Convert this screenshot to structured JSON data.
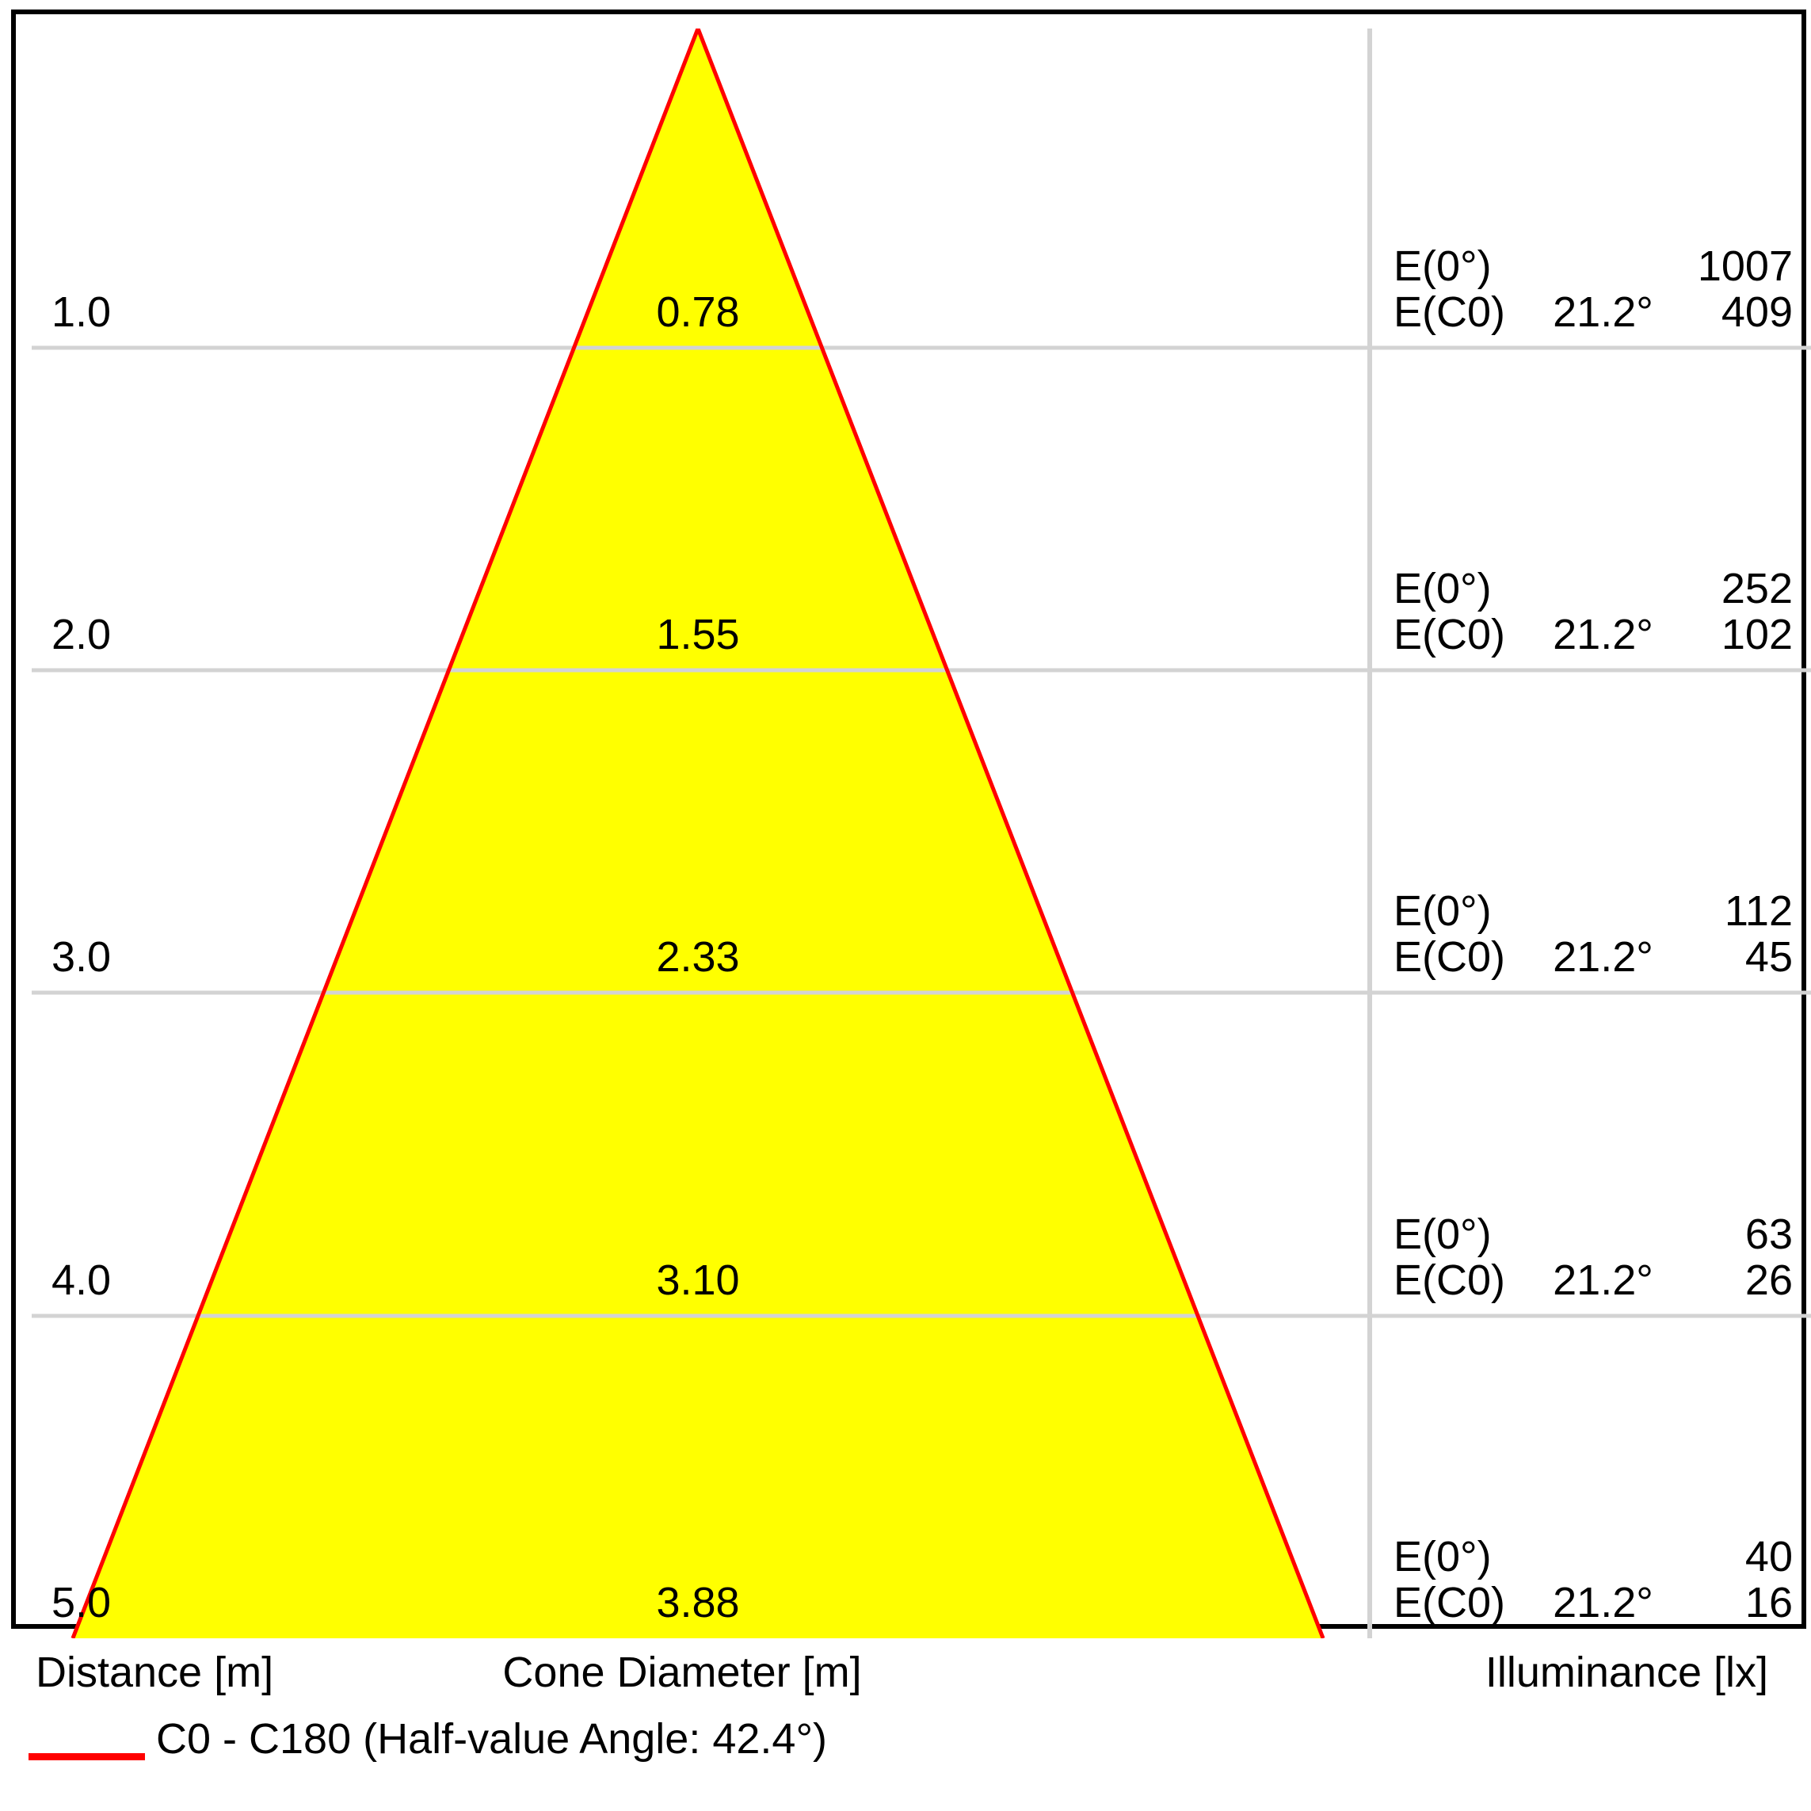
{
  "chart_data": {
    "type": "table",
    "description_rows": [
      {
        "distance_m": "1.0",
        "cone_diameter_m": "0.78",
        "e0_label": "E(0°)",
        "e0_lx": "1007",
        "ec0_label": "E(C0)",
        "ec0_angle": "21.2°",
        "ec0_lx": "409"
      },
      {
        "distance_m": "2.0",
        "cone_diameter_m": "1.55",
        "e0_label": "E(0°)",
        "e0_lx": "252",
        "ec0_label": "E(C0)",
        "ec0_angle": "21.2°",
        "ec0_lx": "102"
      },
      {
        "distance_m": "3.0",
        "cone_diameter_m": "2.33",
        "e0_label": "E(0°)",
        "e0_lx": "112",
        "ec0_label": "E(C0)",
        "ec0_angle": "21.2°",
        "ec0_lx": "45"
      },
      {
        "distance_m": "4.0",
        "cone_diameter_m": "3.10",
        "e0_label": "E(0°)",
        "e0_lx": "63",
        "ec0_label": "E(C0)",
        "ec0_angle": "21.2°",
        "ec0_lx": "26"
      },
      {
        "distance_m": "5.0",
        "cone_diameter_m": "3.88",
        "e0_label": "E(0°)",
        "e0_lx": "40",
        "ec0_label": "E(C0)",
        "ec0_angle": "21.2°",
        "ec0_lx": "16"
      }
    ],
    "distances_m": [
      1.0,
      2.0,
      3.0,
      4.0,
      5.0
    ],
    "cone_diameters_m": [
      0.78,
      1.55,
      2.33,
      3.1,
      3.88
    ],
    "E0_lx": [
      1007,
      252,
      112,
      63,
      40
    ],
    "EC0_lx": [
      409,
      102,
      45,
      26,
      16
    ],
    "EC0_angle_deg": 21.2,
    "half_value_angle_deg": 42.4,
    "columns": {
      "distance": "Distance [m]",
      "cone_diameter": "Cone Diameter [m]",
      "illuminance": "Illuminance [lx]"
    },
    "legend": {
      "series_label": "C0 - C180 (Half-value Angle: 42.4°)"
    },
    "cone": {
      "apex_distance_m": 0.0,
      "base_distance_m": 5.0,
      "base_diameter_m": 3.88,
      "fill": "#FFFF00",
      "outline": "#FF0000"
    },
    "axes": {
      "distance_range_m": [
        0,
        5
      ],
      "grid_distances_m": [
        1,
        2,
        3,
        4,
        5
      ],
      "gridline_color": "#D3D3D3",
      "border_color": "#000000"
    }
  }
}
